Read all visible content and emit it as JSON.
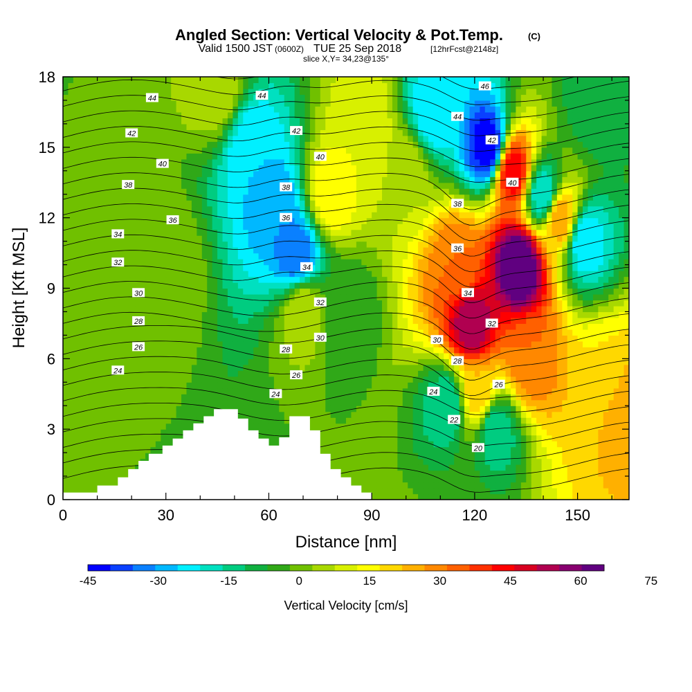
{
  "chart_data": {
    "type": "heatmap",
    "title": "Angled Section: Vertical Velocity & Pot.Temp.",
    "title_unit": "(C)",
    "subtitle_valid": "Valid 1500 JST",
    "subtitle_utc": "(0600Z)",
    "subtitle_date": "TUE 25 Sep 2018",
    "subtitle_fcst": "[12hrFcst@2148z]",
    "subtitle_slice": "slice X,Y= 34,23@135°",
    "xlabel": "Distance [nm]",
    "ylabel": "Height [Kft MSL]",
    "xlim": [
      0,
      165
    ],
    "ylim": [
      0,
      18
    ],
    "xticks": [
      0,
      30,
      60,
      90,
      120,
      150
    ],
    "yticks": [
      0,
      3,
      6,
      9,
      12,
      15,
      18
    ],
    "colorbar": {
      "title": "Vertical Velocity [cm/s]",
      "min": -45,
      "step": 5,
      "tick_labels": [
        -45,
        -30,
        -15,
        0,
        15,
        30,
        45,
        60,
        75
      ],
      "colors": [
        "#0000ff",
        "#0a40ff",
        "#0a80ff",
        "#00b8ff",
        "#00f0ff",
        "#00e0c0",
        "#00cc80",
        "#10b040",
        "#30a818",
        "#70c000",
        "#a8d800",
        "#d8f000",
        "#ffff00",
        "#ffd800",
        "#ffb000",
        "#ff8800",
        "#ff6000",
        "#ff3000",
        "#ff0000",
        "#d80020",
        "#b00050",
        "#880070",
        "#600080"
      ]
    },
    "velocity_features": [
      {
        "x": 8,
        "y": 13,
        "value": 0
      },
      {
        "x": 30,
        "y": 10,
        "value": 5
      },
      {
        "x": 45,
        "y": 17.5,
        "value": 10
      },
      {
        "x": 55,
        "y": 15,
        "value": -25
      },
      {
        "x": 62,
        "y": 12.5,
        "value": -30
      },
      {
        "x": 68,
        "y": 10.5,
        "value": -35
      },
      {
        "x": 70,
        "y": 8,
        "value": 10
      },
      {
        "x": 78,
        "y": 13,
        "value": 20
      },
      {
        "x": 82,
        "y": 8,
        "value": -5
      },
      {
        "x": 88,
        "y": 16,
        "value": 15
      },
      {
        "x": 100,
        "y": 14,
        "value": 10
      },
      {
        "x": 108,
        "y": 16.5,
        "value": -25
      },
      {
        "x": 112,
        "y": 4,
        "value": -15
      },
      {
        "x": 115,
        "y": 10,
        "value": 35
      },
      {
        "x": 119,
        "y": 7.5,
        "value": 60
      },
      {
        "x": 121,
        "y": 4.5,
        "value": 25
      },
      {
        "x": 124,
        "y": 15,
        "value": -45
      },
      {
        "x": 126,
        "y": 3,
        "value": -15
      },
      {
        "x": 131,
        "y": 14,
        "value": 50
      },
      {
        "x": 133,
        "y": 10,
        "value": 75
      },
      {
        "x": 136,
        "y": 6,
        "value": 35
      },
      {
        "x": 140,
        "y": 13,
        "value": -20
      },
      {
        "x": 145,
        "y": 12,
        "value": 30
      },
      {
        "x": 152,
        "y": 11,
        "value": -25
      },
      {
        "x": 158,
        "y": 5,
        "value": 20
      },
      {
        "x": 163,
        "y": 4,
        "value": 30
      },
      {
        "x": 155,
        "y": 17,
        "value": -10
      }
    ],
    "terrain": {
      "x": [
        0,
        10,
        10,
        16,
        16,
        19,
        19,
        22,
        22,
        25,
        25,
        29,
        29,
        32,
        32,
        35,
        35,
        38,
        38,
        41,
        41,
        44,
        44,
        51,
        51,
        54,
        54,
        57,
        57,
        60,
        60,
        63,
        63,
        66,
        66,
        72,
        72,
        75,
        75,
        78,
        78,
        81,
        81,
        84,
        84,
        87,
        87,
        90,
        90
      ],
      "y": [
        0.3,
        0.3,
        0.6,
        0.6,
        0.95,
        0.95,
        1.3,
        1.3,
        1.65,
        1.65,
        1.95,
        1.95,
        2.3,
        2.3,
        2.6,
        2.6,
        2.95,
        2.95,
        3.25,
        3.25,
        3.55,
        3.55,
        3.85,
        3.85,
        3.45,
        3.45,
        2.95,
        2.95,
        2.6,
        2.6,
        2.3,
        2.3,
        2.65,
        2.65,
        3.55,
        3.55,
        2.95,
        2.95,
        1.95,
        1.95,
        1.3,
        1.3,
        0.95,
        0.95,
        0.6,
        0.6,
        0.3,
        0.3,
        0
      ]
    },
    "contours": {
      "name": "Potential Temperature (C)",
      "levels": [
        20,
        21,
        22,
        23,
        24,
        25,
        26,
        27,
        28,
        29,
        30,
        31,
        32,
        33,
        34,
        35,
        36,
        37,
        38,
        39,
        40,
        41,
        42,
        43,
        44,
        45,
        46
      ],
      "labels": [
        {
          "text": "44",
          "x": 26,
          "y": 17.1
        },
        {
          "text": "44",
          "x": 58,
          "y": 17.2
        },
        {
          "text": "42",
          "x": 20,
          "y": 15.6
        },
        {
          "text": "42",
          "x": 68,
          "y": 15.7
        },
        {
          "text": "40",
          "x": 29,
          "y": 14.3
        },
        {
          "text": "40",
          "x": 75,
          "y": 14.6
        },
        {
          "text": "38",
          "x": 19,
          "y": 13.4
        },
        {
          "text": "38",
          "x": 65,
          "y": 13.3
        },
        {
          "text": "36",
          "x": 32,
          "y": 11.9
        },
        {
          "text": "36",
          "x": 65,
          "y": 12
        },
        {
          "text": "34",
          "x": 16,
          "y": 11.3
        },
        {
          "text": "34",
          "x": 71,
          "y": 9.9
        },
        {
          "text": "32",
          "x": 16,
          "y": 10.1
        },
        {
          "text": "32",
          "x": 75,
          "y": 8.4
        },
        {
          "text": "30",
          "x": 22,
          "y": 8.8
        },
        {
          "text": "30",
          "x": 75,
          "y": 6.9
        },
        {
          "text": "28",
          "x": 22,
          "y": 7.6
        },
        {
          "text": "28",
          "x": 65,
          "y": 6.4
        },
        {
          "text": "26",
          "x": 22,
          "y": 6.5
        },
        {
          "text": "26",
          "x": 68,
          "y": 5.3
        },
        {
          "text": "24",
          "x": 16,
          "y": 5.5
        },
        {
          "text": "24",
          "x": 62,
          "y": 4.5
        },
        {
          "text": "46",
          "x": 123,
          "y": 17.6
        },
        {
          "text": "44",
          "x": 115,
          "y": 16.3
        },
        {
          "text": "42",
          "x": 125,
          "y": 15.3
        },
        {
          "text": "40",
          "x": 131,
          "y": 13.5
        },
        {
          "text": "38",
          "x": 115,
          "y": 12.6
        },
        {
          "text": "36",
          "x": 115,
          "y": 10.7
        },
        {
          "text": "34",
          "x": 118,
          "y": 8.8
        },
        {
          "text": "32",
          "x": 125,
          "y": 7.5
        },
        {
          "text": "30",
          "x": 109,
          "y": 6.8
        },
        {
          "text": "28",
          "x": 115,
          "y": 5.9
        },
        {
          "text": "26",
          "x": 127,
          "y": 4.9
        },
        {
          "text": "24",
          "x": 108,
          "y": 4.6
        },
        {
          "text": "22",
          "x": 114,
          "y": 3.4
        },
        {
          "text": "20",
          "x": 121,
          "y": 2.2
        }
      ]
    }
  }
}
